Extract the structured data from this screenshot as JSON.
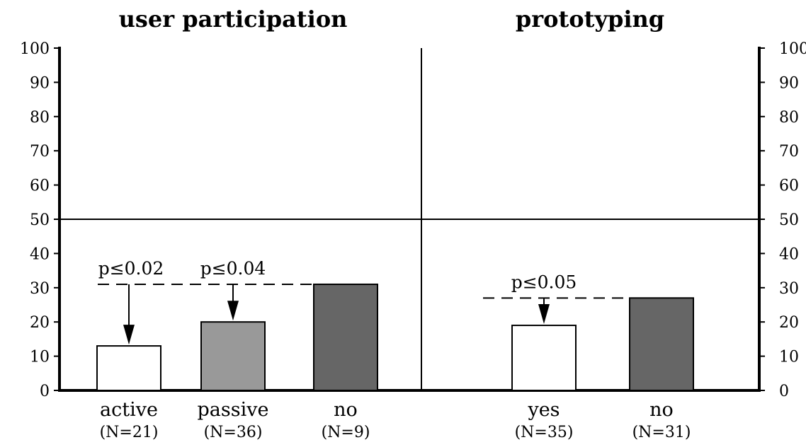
{
  "chart_data": {
    "type": "bar",
    "ylim": [
      0,
      100
    ],
    "yticks": [
      0,
      10,
      20,
      30,
      40,
      50,
      60,
      70,
      80,
      90,
      100
    ],
    "grid": false,
    "panels": [
      {
        "title": "user participation",
        "categories": [
          "active",
          "passive",
          "no"
        ],
        "counts": [
          "(N=21)",
          "(N=36)",
          "(N=9)"
        ],
        "values": [
          13,
          20,
          31
        ],
        "fills": [
          "#ffffff",
          "#999999",
          "#666666"
        ],
        "reference_line": 31,
        "annotations": [
          {
            "label": "p≤0.02",
            "category": "active"
          },
          {
            "label": "p≤0.04",
            "category": "passive"
          }
        ]
      },
      {
        "title": "prototyping",
        "categories": [
          "yes",
          "no"
        ],
        "counts": [
          "(N=35)",
          "(N=31)"
        ],
        "values": [
          19,
          27
        ],
        "fills": [
          "#ffffff",
          "#666666"
        ],
        "reference_line": 27,
        "annotations": [
          {
            "label": "p≤0.05",
            "category": "yes"
          }
        ]
      }
    ]
  }
}
